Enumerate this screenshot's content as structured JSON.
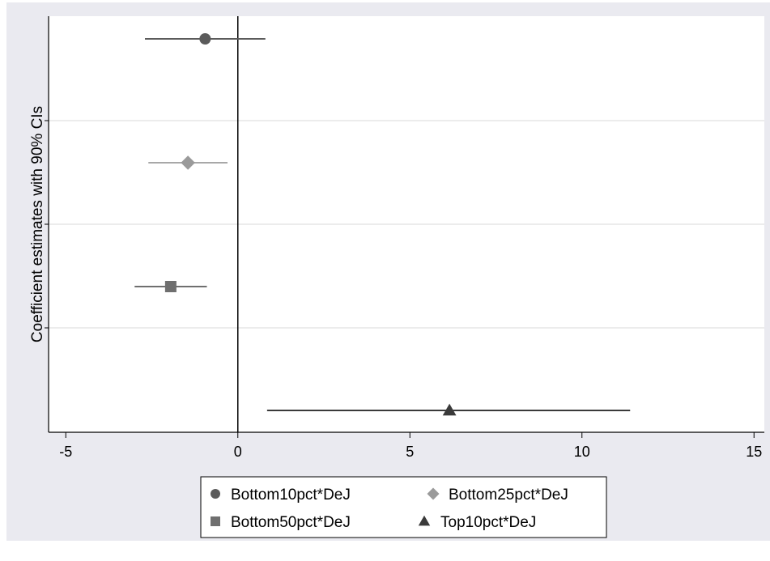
{
  "chart_data": {
    "type": "scatter",
    "title": "",
    "xlabel": "",
    "ylabel": "Coefficient estimates with 90% CIs",
    "xlim": [
      -5.5,
      15.3
    ],
    "xticks": [
      -5,
      0,
      5,
      10,
      15
    ],
    "xtick_labels": [
      "-5",
      "0",
      "5",
      "10",
      "15"
    ],
    "reference_line_x": 0,
    "grid": "horizontal",
    "legend_position": "bottom",
    "series": [
      {
        "name": "Bottom10pct*DeJ",
        "estimate": -0.95,
        "ci": [
          -2.7,
          0.8
        ],
        "marker": "circle",
        "color": "#5b5b5b",
        "line_color": "#5b5b5b"
      },
      {
        "name": "Bottom25pct*DeJ",
        "estimate": -1.45,
        "ci": [
          -2.6,
          -0.3
        ],
        "marker": "diamond",
        "color": "#9a9a9a",
        "line_color": "#a8a8a8"
      },
      {
        "name": "Bottom50pct*DeJ",
        "estimate": -1.95,
        "ci": [
          -3.0,
          -0.9
        ],
        "marker": "square",
        "color": "#6f6f6f",
        "line_color": "#6f6f6f"
      },
      {
        "name": "Top10pct*DeJ",
        "estimate": 6.15,
        "ci": [
          0.85,
          11.4
        ],
        "marker": "triangle",
        "color": "#3a3a3a",
        "line_color": "#3a3a3a"
      }
    ]
  }
}
